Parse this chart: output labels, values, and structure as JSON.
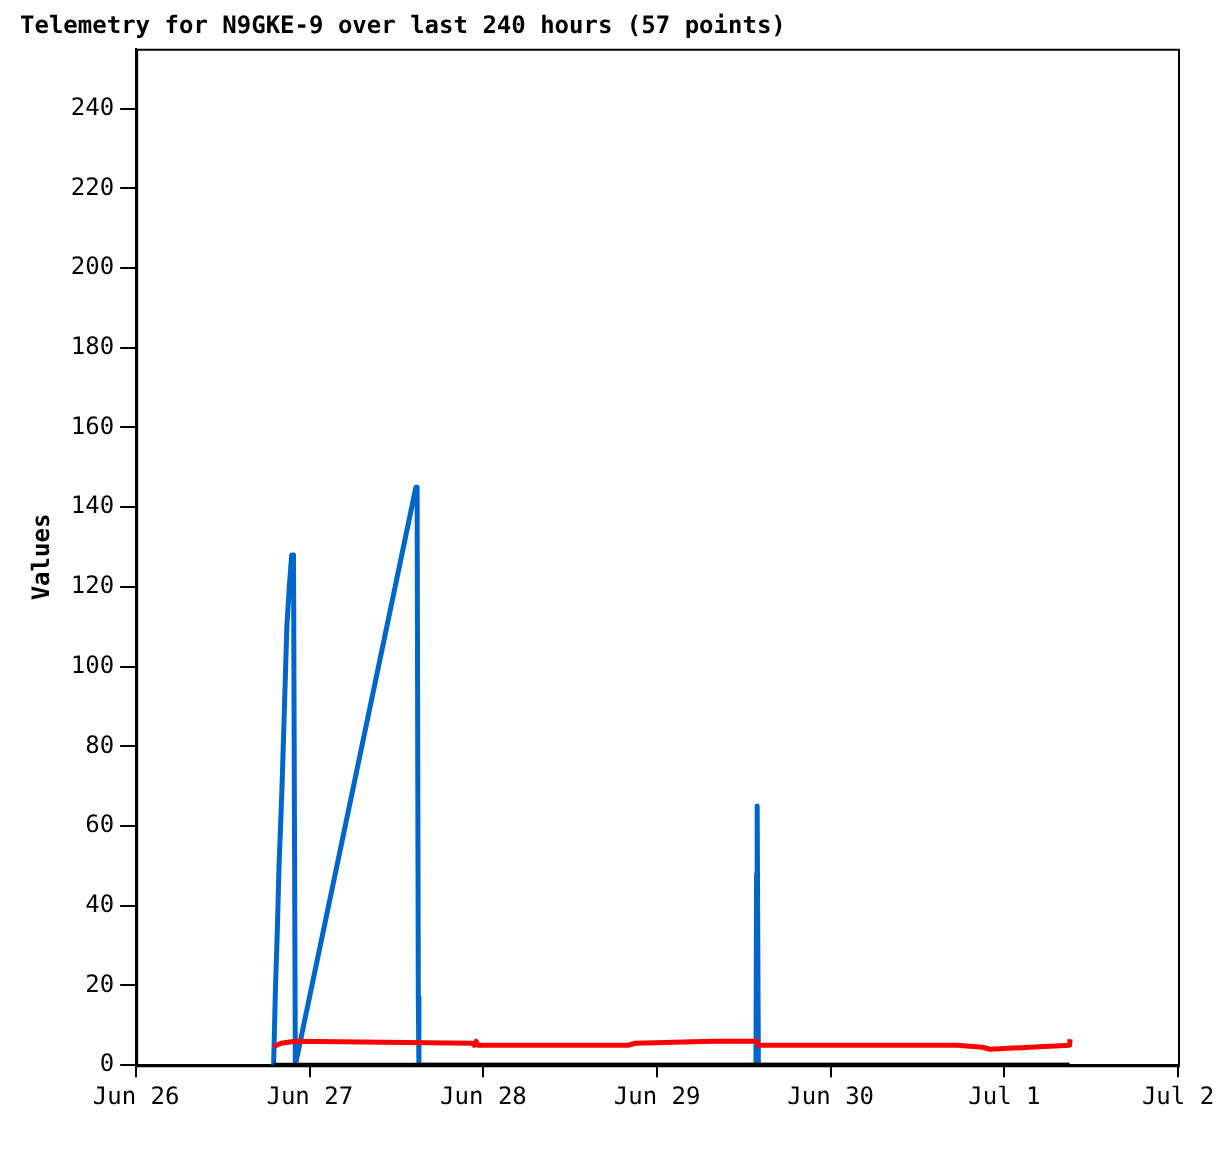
{
  "chart_data": {
    "type": "line",
    "title": "Telemetry for N9GKE-9 over last 240 hours (57 points)",
    "ylabel": "Values",
    "xlim": [
      "--06-26",
      "--07-02"
    ],
    "xticks": [
      {
        "value": "--06-26",
        "label": "Jun 26"
      },
      {
        "value": "--06-27",
        "label": "Jun 27"
      },
      {
        "value": "--06-28",
        "label": "Jun 28"
      },
      {
        "value": "--06-29",
        "label": "Jun 29"
      },
      {
        "value": "--06-30",
        "label": "Jun 30"
      },
      {
        "value": "--07-01",
        "label": "Jul 1"
      },
      {
        "value": "--07-02",
        "label": "Jul 2"
      }
    ],
    "ylim": [
      0,
      255
    ],
    "yticks": [
      0,
      20,
      40,
      60,
      80,
      100,
      120,
      140,
      160,
      180,
      200,
      220,
      240
    ],
    "marker": "none",
    "line_style": "solid",
    "legend": false,
    "series": [
      {
        "color": "#000000",
        "x": [
          "--06-26T19:00",
          "--07-01T09:00"
        ],
        "values": [
          0,
          0
        ]
      },
      {
        "color": "#ff0000",
        "x": [
          "--06-26T19:00",
          "--06-26T20:00",
          "--06-26T22:00",
          "--06-27T22:30",
          "--06-27T22:45",
          "--06-27T23:00",
          "--06-27T23:15",
          "--06-28T20:00",
          "--06-28T21:00",
          "--06-29T07:40",
          "--06-29T13:50",
          "--06-29T14:00",
          "--06-30T17:30",
          "--06-30T21:00",
          "--06-30T22:00",
          "--07-01T09:00",
          "--07-01T09:05"
        ],
        "values": [
          4.6,
          5.5,
          6,
          5.5,
          5,
          6,
          5,
          5,
          5.5,
          6,
          6,
          5,
          5,
          4.5,
          4,
          5,
          6.5
        ]
      },
      {
        "color": "#0066cc",
        "x": [
          "--06-26T19:00",
          "--06-26T19:15",
          "--06-26T19:30",
          "--06-26T19:45",
          "--06-26T20:10",
          "--06-26T20:30",
          "--06-26T20:50",
          "--06-26T21:10",
          "--06-26T21:30",
          "--06-26T21:45",
          "--06-26T22:00",
          "--06-27T14:40",
          "--06-27T14:50",
          "--06-27T15:00",
          "--06-27T15:05",
          "--06-29T13:40",
          "--06-29T13:45",
          "--06-29T13:50",
          "--06-29T14:00",
          "--07-01T09:00"
        ],
        "values": [
          0,
          19,
          33,
          50,
          70,
          90,
          110,
          120,
          128,
          128,
          0,
          145,
          145,
          17,
          0,
          0,
          48,
          65,
          0,
          0
        ]
      }
    ]
  }
}
